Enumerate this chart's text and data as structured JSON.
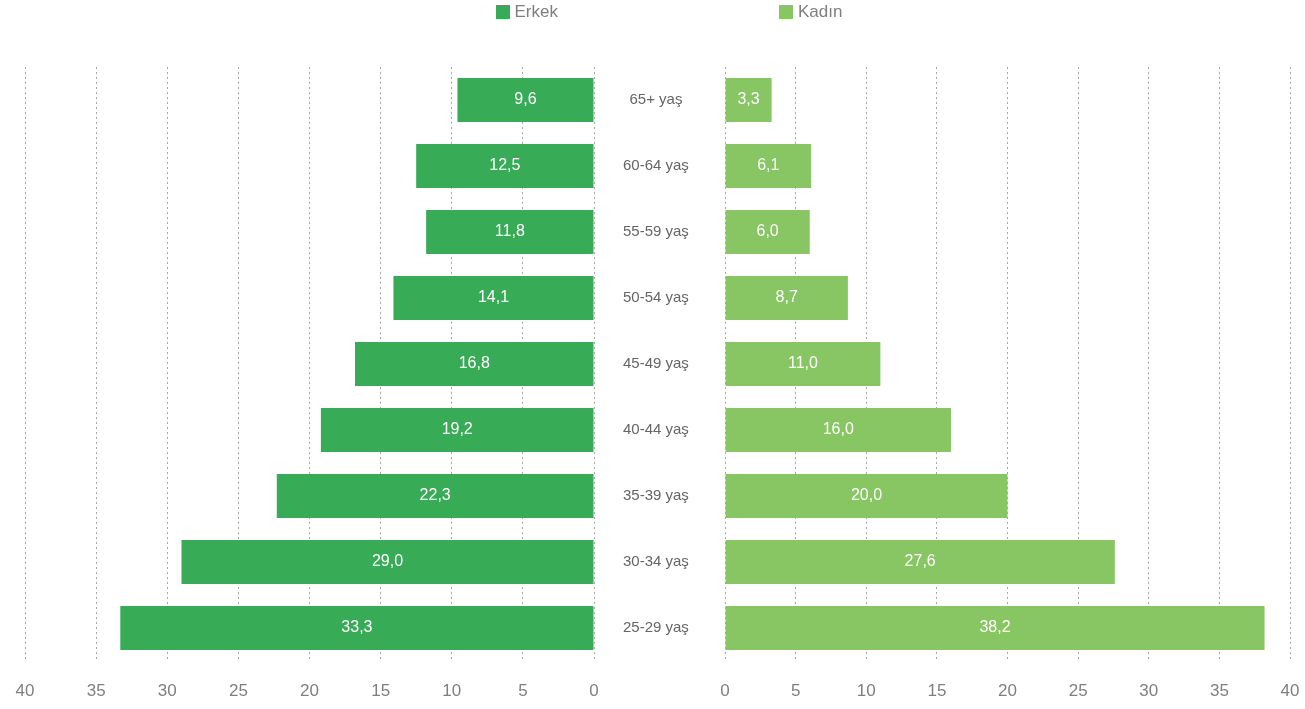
{
  "chart_data": [
    {
      "type": "bar",
      "orientation": "horizontal",
      "categories": [
        "65+ yaş",
        "60-64 yaş",
        "55-59 yaş",
        "50-54 yaş",
        "45-49 yaş",
        "40-44 yaş",
        "35-39 yaş",
        "30-34 yaş",
        "25-29 yaş"
      ],
      "series": [
        {
          "name": "Erkek",
          "color": "#38ab56",
          "values": [
            9.6,
            12.5,
            11.8,
            14.1,
            16.8,
            19.2,
            22.3,
            29.0,
            33.3
          ],
          "value_labels": [
            "9,6",
            "12,5",
            "11,8",
            "14,1",
            "16,8",
            "19,2",
            "22,3",
            "29,0",
            "33,3"
          ]
        }
      ],
      "xlim": [
        40,
        0
      ],
      "xticks": [
        40,
        35,
        30,
        25,
        20,
        15,
        10,
        5,
        0
      ],
      "grid": "x",
      "legend": "top right"
    },
    {
      "type": "bar",
      "orientation": "horizontal",
      "categories": [
        null,
        null,
        null,
        null,
        null,
        null,
        null,
        null,
        null
      ],
      "series": [
        {
          "name": "Kadın",
          "color": "#88c663",
          "values": [
            3.3,
            6.1,
            6.0,
            8.7,
            11.0,
            16.0,
            20.0,
            27.6,
            38.2
          ],
          "value_labels": [
            "3,3",
            "6,1",
            "6,0",
            "8,7",
            "11,0",
            "16,0",
            "20,0",
            "27,6",
            "38,2"
          ]
        }
      ],
      "xlim": [
        0,
        40
      ],
      "xticks": [
        0,
        5,
        10,
        15,
        20,
        25,
        30,
        35,
        40
      ],
      "grid": "x",
      "legend": "top left"
    }
  ]
}
